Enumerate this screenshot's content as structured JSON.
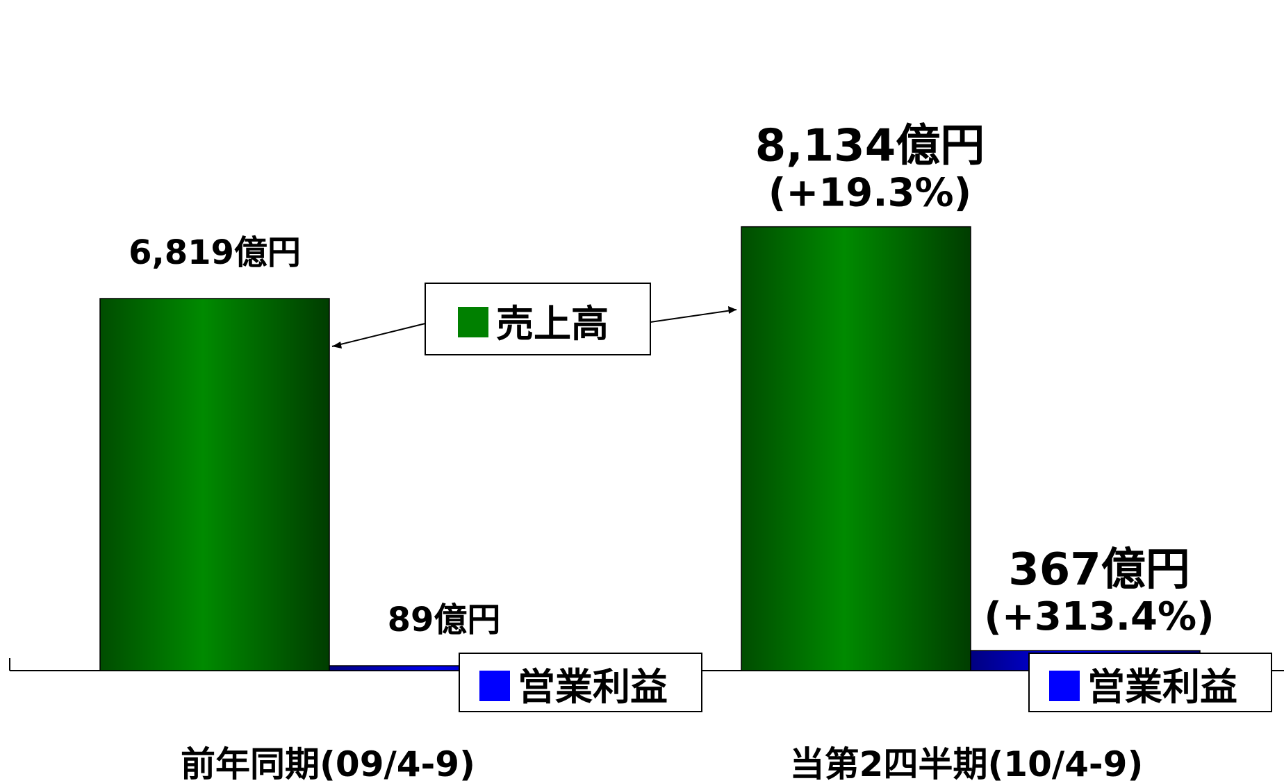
{
  "chart_data": {
    "type": "bar",
    "categories": [
      "前年同期(09/4-9)",
      "当第2四半期(10/4-9)"
    ],
    "series": [
      {
        "name": "売上高",
        "values": [
          6819,
          8134
        ],
        "labels": [
          "6,819億円",
          "8,134億円"
        ],
        "changes": [
          "",
          "(+19.3%)"
        ],
        "color": "#008000"
      },
      {
        "name": "営業利益",
        "values": [
          89,
          367
        ],
        "labels": [
          "89億円",
          "367億円"
        ],
        "changes": [
          "",
          "(+313.4%)"
        ],
        "color": "#0000ff"
      }
    ],
    "unit": "億円",
    "grid": false,
    "legend": "callouts"
  }
}
